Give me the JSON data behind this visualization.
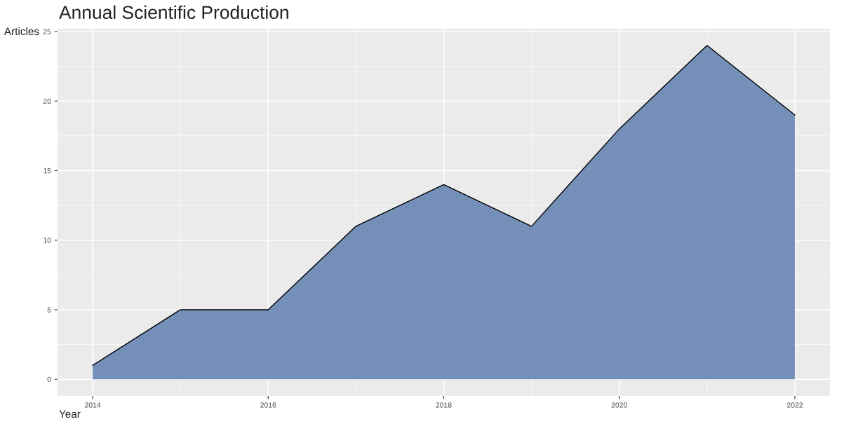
{
  "chart_data": {
    "type": "area",
    "title": "Annual Scientific Production",
    "xlabel": "Year",
    "ylabel": "Articles",
    "x": [
      2014,
      2015,
      2016,
      2017,
      2018,
      2019,
      2020,
      2021,
      2022
    ],
    "series": [
      {
        "color": "#7590b8",
        "values": [
          1,
          5,
          5,
          11,
          14,
          11,
          18,
          24,
          19
        ]
      }
    ],
    "xlim": [
      2013.6,
      2022.4
    ],
    "xticks": [
      2014,
      2016,
      2018,
      2020,
      2022
    ],
    "ylim": [
      -1.2,
      25.2
    ],
    "yticks": [
      0,
      5,
      10,
      15,
      20,
      25
    ],
    "grid": true,
    "legend": false
  }
}
